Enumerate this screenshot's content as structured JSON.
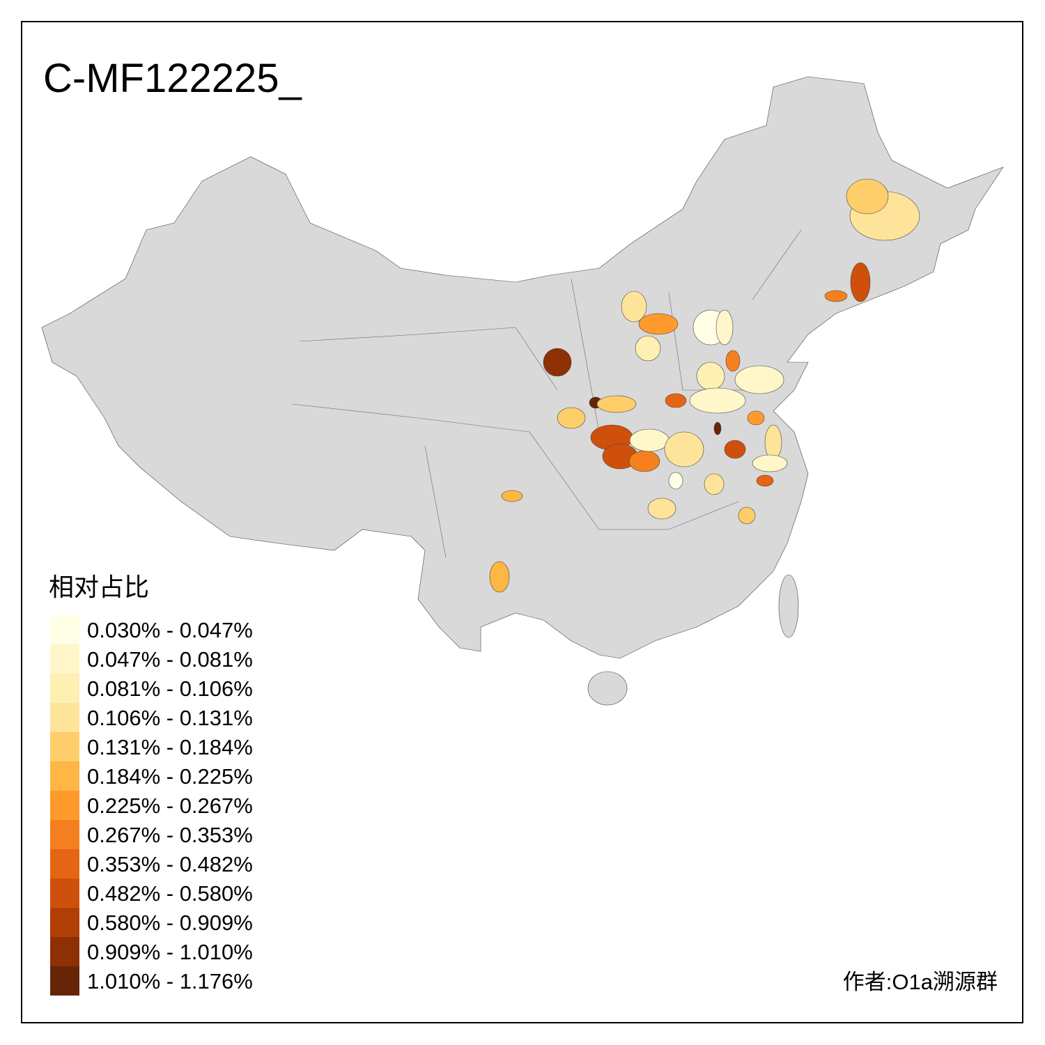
{
  "title": "C-MF122225_",
  "legend": {
    "title": "相对占比",
    "items": [
      {
        "label": "0.030% - 0.047%",
        "color": "#ffffe5"
      },
      {
        "label": "0.047% - 0.081%",
        "color": "#fff7c9"
      },
      {
        "label": "0.081% - 0.106%",
        "color": "#feefb3"
      },
      {
        "label": "0.106% - 0.131%",
        "color": "#fee39a"
      },
      {
        "label": "0.131% - 0.184%",
        "color": "#fece6a"
      },
      {
        "label": "0.184% - 0.225%",
        "color": "#feb645"
      },
      {
        "label": "0.225% - 0.267%",
        "color": "#fe9b2c"
      },
      {
        "label": "0.267% - 0.353%",
        "color": "#f4801f"
      },
      {
        "label": "0.353% - 0.482%",
        "color": "#e46615"
      },
      {
        "label": "0.482% - 0.580%",
        "color": "#cf500c"
      },
      {
        "label": "0.580% - 0.909%",
        "color": "#b13e05"
      },
      {
        "label": "0.909% - 1.010%",
        "color": "#8d3104"
      },
      {
        "label": "1.010% - 1.176%",
        "color": "#662506"
      }
    ]
  },
  "author": "作者:O1a溯源群"
}
